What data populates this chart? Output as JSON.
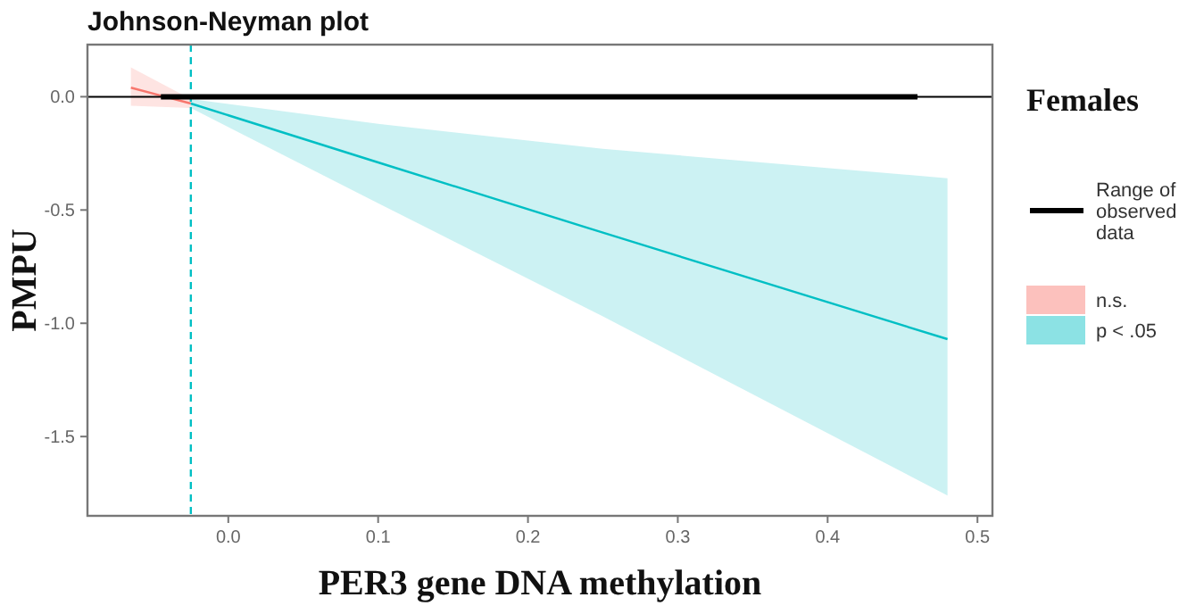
{
  "chart_data": {
    "type": "line",
    "title": "Johnson-Neyman plot",
    "xlabel": "PER3 gene DNA methylation",
    "ylabel": "PMPU",
    "legend_title": "Females",
    "legend": "right",
    "grid": false,
    "xlim": [
      -0.094,
      0.51
    ],
    "ylim": [
      -1.85,
      0.23
    ],
    "xticks": [
      {
        "value": 0,
        "label": "0.0"
      },
      0.1,
      0.2,
      0.3,
      0.4,
      0.5
    ],
    "yticks": [
      {
        "value": 0,
        "label": "0.0"
      },
      -0.5,
      {
        "value": -1,
        "label": "-1.0"
      },
      -1.5
    ],
    "series": [
      {
        "name": "n.s.",
        "color": "#f8766d",
        "x": [
          -0.065,
          -0.045,
          -0.025
        ],
        "values": [
          0.04,
          0.005,
          -0.03
        ],
        "lower": [
          -0.04,
          -0.045,
          -0.05
        ],
        "upper": [
          0.13,
          0.06,
          -0.01
        ]
      },
      {
        "name": "p < .05",
        "color": "#00bfc4",
        "x": [
          -0.025,
          0.1,
          0.25,
          0.48
        ],
        "values": [
          -0.03,
          -0.29,
          -0.6,
          -1.07
        ],
        "lower": [
          -0.05,
          -0.47,
          -0.97,
          -1.76
        ],
        "upper": [
          -0.01,
          -0.12,
          -0.23,
          -0.36
        ]
      },
      {
        "name": "Range of observed data",
        "color": "#000000",
        "x": [
          -0.045,
          0.46
        ],
        "values": [
          0,
          0
        ]
      }
    ],
    "ref_lines": [
      {
        "axis": "y",
        "value": 0,
        "color": "#000000",
        "line_style": "solid"
      },
      {
        "axis": "x",
        "value": -0.025,
        "color": "#00bfc4",
        "line_style": "dashed"
      }
    ]
  }
}
